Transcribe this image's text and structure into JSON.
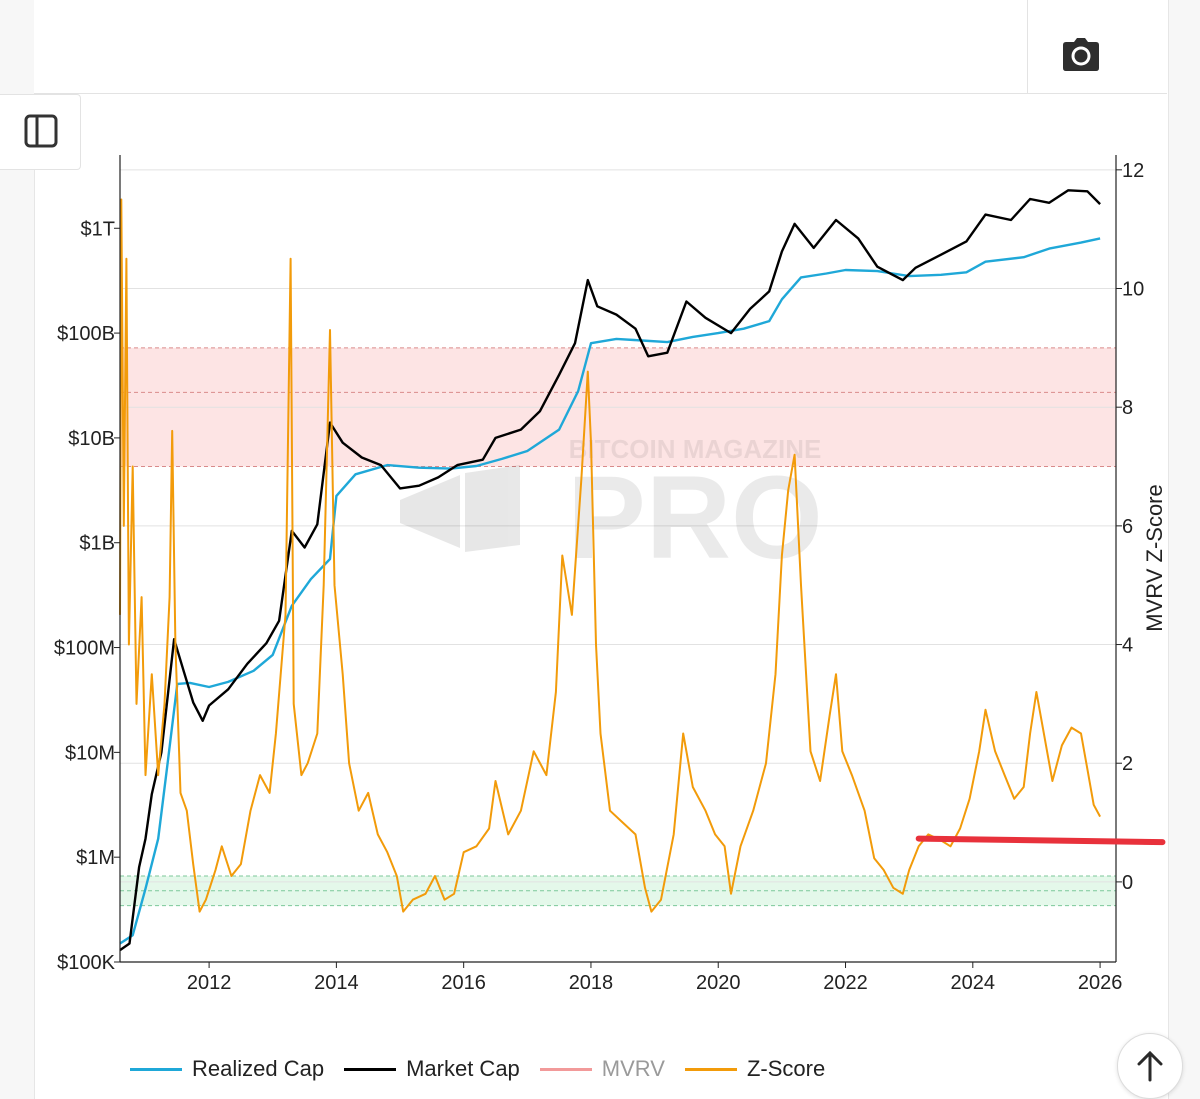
{
  "toolbar": {
    "camera_icon": "camera-icon",
    "sidebar_icon": "sidebar-toggle-icon"
  },
  "watermark": {
    "top": "BITCOIN MAGAZINE",
    "main": "PRO"
  },
  "colors": {
    "realized_cap": "#1fa8d8",
    "market_cap": "#000000",
    "mvrv": "#f29a9a",
    "zscore": "#f29b0a",
    "red_band": "#fde4e4",
    "green_band": "#e4f8ea",
    "annotation": "#e8313b"
  },
  "chart_data": {
    "type": "line",
    "x_ticks": [
      "2012",
      "2014",
      "2016",
      "2018",
      "2020",
      "2022",
      "2024",
      "2026"
    ],
    "x_range": [
      2010.6,
      2026.25
    ],
    "y_left": {
      "scale": "log",
      "ticks": [
        {
          "label": "$100K",
          "value": 100000
        },
        {
          "label": "$1M",
          "value": 1000000
        },
        {
          "label": "$10M",
          "value": 10000000
        },
        {
          "label": "$100M",
          "value": 100000000
        },
        {
          "label": "$1B",
          "value": 1000000000
        },
        {
          "label": "$10B",
          "value": 10000000000
        },
        {
          "label": "$100B",
          "value": 100000000000
        },
        {
          "label": "$1T",
          "value": 1000000000000
        }
      ],
      "range": [
        100000,
        5000000000000
      ]
    },
    "y_right": {
      "label": "MVRV Z-Score",
      "ticks": [
        "0",
        "2",
        "4",
        "6",
        "8",
        "10",
        "12"
      ],
      "range": [
        -1.35,
        12.25
      ]
    },
    "bands": [
      {
        "name": "red",
        "z_from": 7.0,
        "z_to": 9.0,
        "mid": 8.25
      },
      {
        "name": "green",
        "z_from": -0.4,
        "z_to": 0.1,
        "mid": -0.15
      }
    ],
    "annotation_line": {
      "x_from": 2023.15,
      "x_to": 2026.98,
      "z_from": 0.73,
      "z_to": 0.67
    },
    "series": [
      {
        "name": "Realized Cap",
        "axis": "left",
        "points": [
          [
            2010.6,
            150000
          ],
          [
            2010.8,
            180000
          ],
          [
            2011.0,
            500000
          ],
          [
            2011.2,
            1500000
          ],
          [
            2011.35,
            8000000
          ],
          [
            2011.5,
            45000000
          ],
          [
            2011.7,
            46000000
          ],
          [
            2012.0,
            42000000
          ],
          [
            2012.3,
            47000000
          ],
          [
            2012.7,
            60000000
          ],
          [
            2013.0,
            85000000
          ],
          [
            2013.3,
            250000000
          ],
          [
            2013.6,
            450000000
          ],
          [
            2013.9,
            700000000
          ],
          [
            2014.0,
            2800000000
          ],
          [
            2014.3,
            4500000000
          ],
          [
            2014.8,
            5500000000
          ],
          [
            2015.3,
            5200000000
          ],
          [
            2015.8,
            5100000000
          ],
          [
            2016.2,
            5400000000
          ],
          [
            2016.6,
            6300000000
          ],
          [
            2017.0,
            7500000000
          ],
          [
            2017.5,
            12000000000
          ],
          [
            2017.8,
            28000000000
          ],
          [
            2018.0,
            80000000000
          ],
          [
            2018.4,
            88000000000
          ],
          [
            2018.8,
            85000000000
          ],
          [
            2019.2,
            82000000000
          ],
          [
            2019.6,
            92000000000
          ],
          [
            2020.0,
            100000000000
          ],
          [
            2020.4,
            110000000000
          ],
          [
            2020.8,
            130000000000
          ],
          [
            2021.0,
            210000000000
          ],
          [
            2021.3,
            340000000000
          ],
          [
            2021.7,
            370000000000
          ],
          [
            2022.0,
            400000000000
          ],
          [
            2022.5,
            390000000000
          ],
          [
            2023.0,
            350000000000
          ],
          [
            2023.5,
            360000000000
          ],
          [
            2023.9,
            380000000000
          ],
          [
            2024.2,
            480000000000
          ],
          [
            2024.8,
            530000000000
          ],
          [
            2025.2,
            640000000000
          ],
          [
            2025.7,
            730000000000
          ],
          [
            2026.0,
            800000000000
          ]
        ]
      },
      {
        "name": "Market Cap",
        "axis": "left",
        "points": [
          [
            2010.6,
            130000
          ],
          [
            2010.75,
            150000
          ],
          [
            2010.9,
            800000
          ],
          [
            2011.0,
            1500000
          ],
          [
            2011.1,
            4000000
          ],
          [
            2011.25,
            10000000
          ],
          [
            2011.45,
            120000000
          ],
          [
            2011.6,
            60000000
          ],
          [
            2011.75,
            30000000
          ],
          [
            2011.9,
            20000000
          ],
          [
            2012.0,
            28000000
          ],
          [
            2012.3,
            40000000
          ],
          [
            2012.6,
            70000000
          ],
          [
            2012.9,
            110000000
          ],
          [
            2013.1,
            180000000
          ],
          [
            2013.3,
            1300000000
          ],
          [
            2013.5,
            900000000
          ],
          [
            2013.7,
            1500000000
          ],
          [
            2013.9,
            14000000000
          ],
          [
            2014.1,
            9000000000
          ],
          [
            2014.4,
            6500000000
          ],
          [
            2014.7,
            5500000000
          ],
          [
            2015.0,
            3300000000
          ],
          [
            2015.3,
            3500000000
          ],
          [
            2015.6,
            4200000000
          ],
          [
            2015.9,
            5500000000
          ],
          [
            2016.3,
            6200000000
          ],
          [
            2016.5,
            10000000000
          ],
          [
            2016.9,
            12000000000
          ],
          [
            2017.2,
            18000000000
          ],
          [
            2017.5,
            40000000000
          ],
          [
            2017.75,
            80000000000
          ],
          [
            2017.95,
            320000000000
          ],
          [
            2018.1,
            180000000000
          ],
          [
            2018.4,
            150000000000
          ],
          [
            2018.7,
            110000000000
          ],
          [
            2018.9,
            60000000000
          ],
          [
            2019.2,
            65000000000
          ],
          [
            2019.5,
            200000000000
          ],
          [
            2019.8,
            140000000000
          ],
          [
            2020.2,
            100000000000
          ],
          [
            2020.5,
            170000000000
          ],
          [
            2020.8,
            250000000000
          ],
          [
            2021.0,
            600000000000
          ],
          [
            2021.2,
            1100000000000
          ],
          [
            2021.5,
            650000000000
          ],
          [
            2021.85,
            1200000000000
          ],
          [
            2022.2,
            800000000000
          ],
          [
            2022.5,
            430000000000
          ],
          [
            2022.9,
            320000000000
          ],
          [
            2023.1,
            420000000000
          ],
          [
            2023.5,
            560000000000
          ],
          [
            2023.9,
            750000000000
          ],
          [
            2024.2,
            1350000000000
          ],
          [
            2024.6,
            1200000000000
          ],
          [
            2024.9,
            1900000000000
          ],
          [
            2025.2,
            1750000000000
          ],
          [
            2025.5,
            2300000000000
          ],
          [
            2025.8,
            2250000000000
          ],
          [
            2026.0,
            1700000000000
          ]
        ]
      },
      {
        "name": "MVRV",
        "axis": "left",
        "points": []
      },
      {
        "name": "Z-Score",
        "axis": "right",
        "points": [
          [
            2010.6,
            4.5
          ],
          [
            2010.62,
            11.5
          ],
          [
            2010.66,
            6
          ],
          [
            2010.7,
            10.5
          ],
          [
            2010.74,
            4
          ],
          [
            2010.8,
            7
          ],
          [
            2010.86,
            3
          ],
          [
            2010.94,
            4.8
          ],
          [
            2011.0,
            1.8
          ],
          [
            2011.1,
            3.5
          ],
          [
            2011.2,
            1.8
          ],
          [
            2011.3,
            3
          ],
          [
            2011.38,
            4.8
          ],
          [
            2011.42,
            7.6
          ],
          [
            2011.47,
            4
          ],
          [
            2011.55,
            1.5
          ],
          [
            2011.65,
            1.2
          ],
          [
            2011.75,
            0.3
          ],
          [
            2011.85,
            -0.5
          ],
          [
            2011.95,
            -0.3
          ],
          [
            2012.1,
            0.2
          ],
          [
            2012.2,
            0.6
          ],
          [
            2012.35,
            0.1
          ],
          [
            2012.5,
            0.3
          ],
          [
            2012.65,
            1.2
          ],
          [
            2012.8,
            1.8
          ],
          [
            2012.95,
            1.5
          ],
          [
            2013.05,
            2.5
          ],
          [
            2013.2,
            4.5
          ],
          [
            2013.28,
            10.5
          ],
          [
            2013.33,
            3
          ],
          [
            2013.45,
            1.8
          ],
          [
            2013.55,
            2
          ],
          [
            2013.7,
            2.5
          ],
          [
            2013.8,
            5
          ],
          [
            2013.9,
            9.3
          ],
          [
            2013.97,
            5
          ],
          [
            2014.1,
            3.5
          ],
          [
            2014.2,
            2
          ],
          [
            2014.35,
            1.2
          ],
          [
            2014.5,
            1.5
          ],
          [
            2014.65,
            0.8
          ],
          [
            2014.8,
            0.5
          ],
          [
            2014.95,
            0.1
          ],
          [
            2015.05,
            -0.5
          ],
          [
            2015.2,
            -0.3
          ],
          [
            2015.4,
            -0.2
          ],
          [
            2015.55,
            0.1
          ],
          [
            2015.7,
            -0.3
          ],
          [
            2015.85,
            -0.2
          ],
          [
            2016.0,
            0.5
          ],
          [
            2016.2,
            0.6
          ],
          [
            2016.4,
            0.9
          ],
          [
            2016.5,
            1.7
          ],
          [
            2016.7,
            0.8
          ],
          [
            2016.9,
            1.2
          ],
          [
            2017.1,
            2.2
          ],
          [
            2017.3,
            1.8
          ],
          [
            2017.45,
            3.2
          ],
          [
            2017.55,
            5.5
          ],
          [
            2017.7,
            4.5
          ],
          [
            2017.85,
            6.8
          ],
          [
            2017.95,
            8.6
          ],
          [
            2018.0,
            7.4
          ],
          [
            2018.08,
            4
          ],
          [
            2018.15,
            2.5
          ],
          [
            2018.3,
            1.2
          ],
          [
            2018.5,
            1
          ],
          [
            2018.7,
            0.8
          ],
          [
            2018.85,
            -0.1
          ],
          [
            2018.95,
            -0.5
          ],
          [
            2019.1,
            -0.3
          ],
          [
            2019.3,
            0.8
          ],
          [
            2019.45,
            2.5
          ],
          [
            2019.6,
            1.6
          ],
          [
            2019.8,
            1.2
          ],
          [
            2019.95,
            0.8
          ],
          [
            2020.1,
            0.6
          ],
          [
            2020.2,
            -0.2
          ],
          [
            2020.35,
            0.6
          ],
          [
            2020.55,
            1.2
          ],
          [
            2020.75,
            2
          ],
          [
            2020.9,
            3.5
          ],
          [
            2021.0,
            5.5
          ],
          [
            2021.1,
            6.6
          ],
          [
            2021.2,
            7.2
          ],
          [
            2021.3,
            5
          ],
          [
            2021.45,
            2.2
          ],
          [
            2021.6,
            1.7
          ],
          [
            2021.75,
            2.8
          ],
          [
            2021.85,
            3.5
          ],
          [
            2021.95,
            2.2
          ],
          [
            2022.1,
            1.8
          ],
          [
            2022.3,
            1.2
          ],
          [
            2022.45,
            0.4
          ],
          [
            2022.6,
            0.2
          ],
          [
            2022.75,
            -0.1
          ],
          [
            2022.9,
            -0.2
          ],
          [
            2023.0,
            0.2
          ],
          [
            2023.15,
            0.6
          ],
          [
            2023.3,
            0.8
          ],
          [
            2023.5,
            0.7
          ],
          [
            2023.65,
            0.6
          ],
          [
            2023.8,
            0.9
          ],
          [
            2023.95,
            1.4
          ],
          [
            2024.1,
            2.2
          ],
          [
            2024.2,
            2.9
          ],
          [
            2024.35,
            2.2
          ],
          [
            2024.5,
            1.8
          ],
          [
            2024.65,
            1.4
          ],
          [
            2024.8,
            1.6
          ],
          [
            2024.9,
            2.5
          ],
          [
            2025.0,
            3.2
          ],
          [
            2025.1,
            2.6
          ],
          [
            2025.25,
            1.7
          ],
          [
            2025.4,
            2.3
          ],
          [
            2025.55,
            2.6
          ],
          [
            2025.7,
            2.5
          ],
          [
            2025.8,
            1.9
          ],
          [
            2025.9,
            1.3
          ],
          [
            2026.0,
            1.1
          ]
        ]
      }
    ],
    "legend": [
      {
        "label": "Realized Cap",
        "color": "#1fa8d8",
        "muted": false
      },
      {
        "label": "Market Cap",
        "color": "#000000",
        "muted": false
      },
      {
        "label": "MVRV",
        "color": "#f29a9a",
        "muted": true
      },
      {
        "label": "Z-Score",
        "color": "#f29b0a",
        "muted": false
      }
    ]
  }
}
